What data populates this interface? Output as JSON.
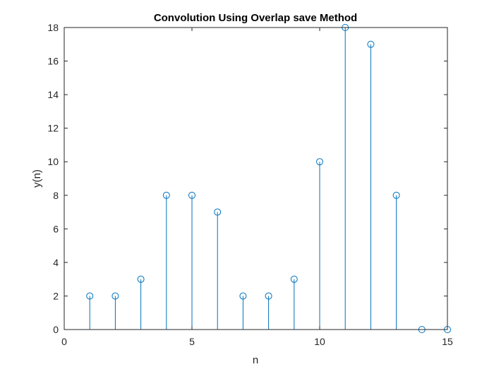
{
  "chart_data": {
    "type": "stem",
    "title": "Convolution Using Overlap save Method",
    "xlabel": "n",
    "ylabel": "y(n)",
    "xlim": [
      0,
      15
    ],
    "ylim": [
      0,
      18
    ],
    "xticks": [
      0,
      5,
      10,
      15
    ],
    "yticks": [
      0,
      2,
      4,
      6,
      8,
      10,
      12,
      14,
      16,
      18
    ],
    "grid": false,
    "series": [
      {
        "x": [
          1,
          2,
          3,
          4,
          5,
          6,
          7,
          8,
          9,
          10,
          11,
          12,
          13,
          14,
          15
        ],
        "values": [
          2,
          2,
          3,
          8,
          8,
          7,
          2,
          2,
          3,
          10,
          18,
          17,
          8,
          0,
          0
        ],
        "color": "#0072BD",
        "marker": "circle"
      }
    ]
  }
}
